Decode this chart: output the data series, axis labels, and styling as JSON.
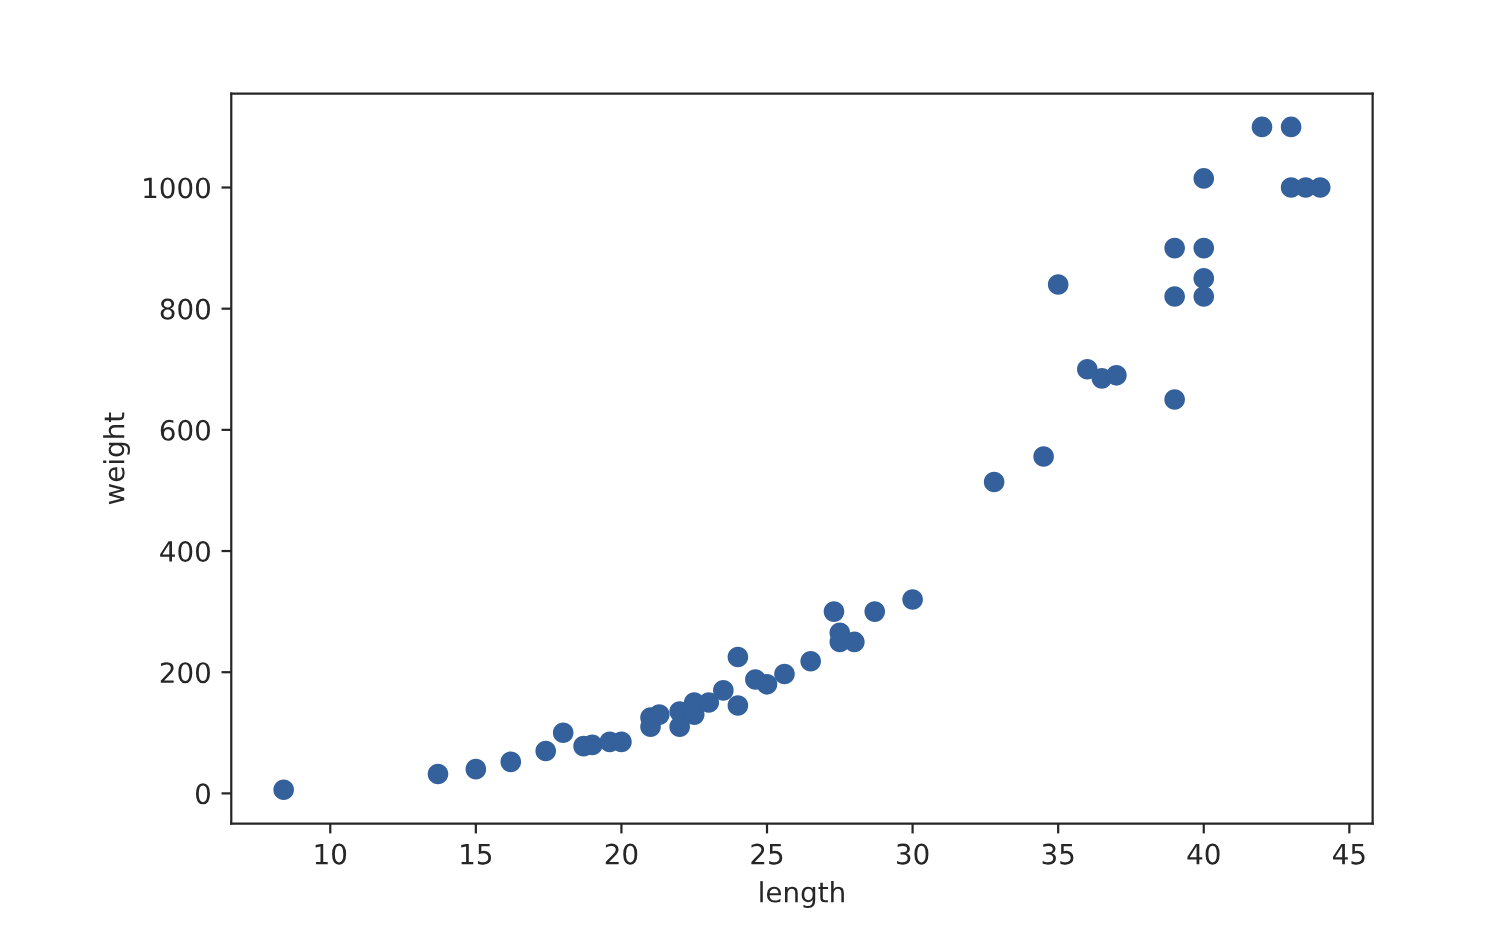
{
  "chart_data": {
    "type": "scatter",
    "xlabel": "length",
    "ylabel": "weight",
    "x": [
      8.4,
      13.7,
      15.0,
      16.2,
      17.4,
      18.0,
      18.7,
      19.0,
      19.6,
      20.0,
      21.0,
      21.0,
      21.3,
      22.0,
      22.0,
      22.5,
      22.5,
      23.0,
      23.5,
      24.0,
      24.0,
      24.6,
      25.0,
      25.6,
      26.5,
      27.3,
      27.5,
      27.5,
      28.0,
      28.7,
      30.0,
      32.8,
      34.5,
      35.0,
      36.5,
      36.0,
      37.0,
      39.0,
      39.0,
      39.0,
      40.0,
      40.0,
      40.0,
      40.0,
      42.0,
      43.0,
      43.0,
      43.5,
      44.0
    ],
    "series": [
      {
        "color": "#34609b",
        "values": [
          6,
          32,
          40,
          52,
          70,
          100,
          78,
          80,
          85,
          85,
          110,
          125,
          130,
          135,
          110,
          130,
          150,
          150,
          170,
          225,
          145,
          188,
          180,
          197,
          218,
          300,
          265,
          250,
          250,
          300,
          320,
          514,
          556,
          840,
          685,
          700,
          690,
          900,
          650,
          820,
          850,
          900,
          1015,
          820,
          1100,
          1000,
          1100,
          1000,
          1000
        ]
      }
    ],
    "xlim": [
      6.6,
      45.8
    ],
    "ylim": [
      -50,
      1155
    ],
    "xticks": [
      10,
      15,
      20,
      25,
      30,
      35,
      40,
      45
    ],
    "yticks": [
      0,
      200,
      400,
      600,
      800,
      1000
    ],
    "marker": "circle",
    "grid": false,
    "legend": false
  }
}
